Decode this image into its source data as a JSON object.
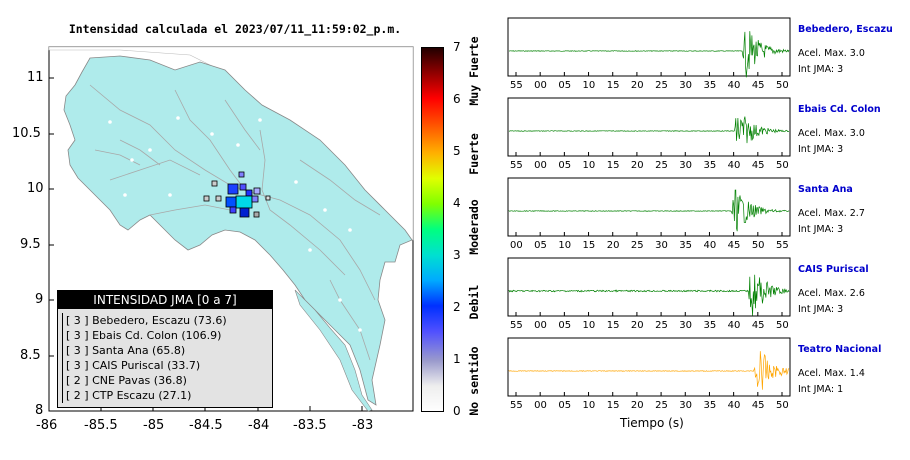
{
  "map": {
    "title": "Intensidad calculada el 2023/07/11_11:59:02_p.m.",
    "x_ticks": [
      "-86",
      "-85.5",
      "-85",
      "-84.5",
      "-84",
      "-83.5",
      "-83"
    ],
    "y_ticks": [
      "11",
      "10.5",
      "10",
      "9.5",
      "9",
      "8.5",
      "8"
    ]
  },
  "colorbar": {
    "ticks": [
      "0",
      "1",
      "2",
      "3",
      "4",
      "5",
      "6",
      "7"
    ],
    "words": [
      "No sentido",
      "Debil",
      "Moderado",
      "Fuerte",
      "Muy Fuerte"
    ]
  },
  "legend": {
    "title": "INTENSIDAD JMA [0 a 7]",
    "items": [
      "[ 3 ]  Bebedero, Escazu (73.6)",
      "[ 3 ]  Ebais Cd. Colon (106.9)",
      "[ 3 ]  Santa Ana (65.8)",
      "[ 3 ]  CAIS Puriscal (33.7)",
      "[ 2 ]  CNE Pavas (36.8)",
      "[ 2 ]  CTP Escazu (27.1)"
    ]
  },
  "stations": [
    {
      "name": "Bebedero, Escazu",
      "accel": "Acel. Max. 3.0",
      "int": "Int JMA: 3",
      "color": "#008000",
      "ticks": [
        "55",
        "00",
        "05",
        "10",
        "15",
        "20",
        "25",
        "30",
        "35",
        "40",
        "45",
        "50"
      ]
    },
    {
      "name": "Ebais Cd. Colon",
      "accel": "Acel. Max. 3.0",
      "int": "Int JMA: 3",
      "color": "#008000",
      "ticks": [
        "55",
        "00",
        "05",
        "10",
        "15",
        "20",
        "25",
        "30",
        "35",
        "40",
        "45",
        "50"
      ]
    },
    {
      "name": "Santa Ana",
      "accel": "Acel. Max. 2.7",
      "int": "Int JMA: 3",
      "color": "#008000",
      "ticks": [
        "00",
        "05",
        "10",
        "15",
        "20",
        "25",
        "30",
        "35",
        "40",
        "45",
        "50",
        "55"
      ]
    },
    {
      "name": "CAIS Puriscal",
      "accel": "Acel. Max. 2.6",
      "int": "Int JMA: 3",
      "color": "#008000",
      "ticks": [
        "55",
        "00",
        "05",
        "10",
        "15",
        "20",
        "25",
        "30",
        "35",
        "40",
        "45",
        "50"
      ]
    },
    {
      "name": "Teatro Nacional",
      "accel": "Acel. Max. 1.4",
      "int": "Int JMA: 1",
      "color": "#ffa500",
      "ticks": [
        "55",
        "00",
        "05",
        "10",
        "15",
        "20",
        "25",
        "30",
        "35",
        "40",
        "45",
        "50"
      ]
    }
  ],
  "xlabel": "Tiempo (s)"
}
